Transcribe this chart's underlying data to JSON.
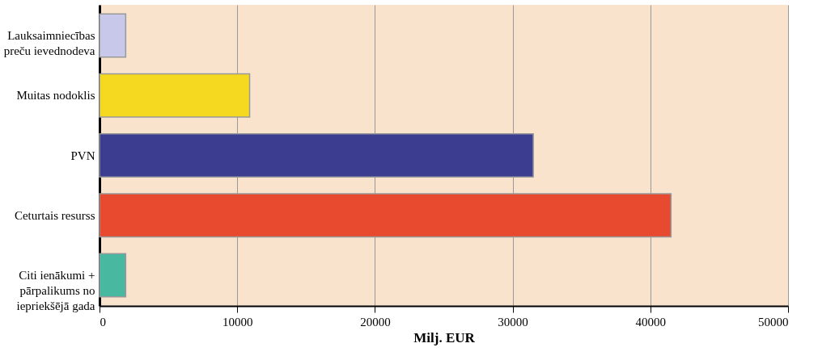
{
  "chart_data": {
    "type": "bar",
    "orientation": "horizontal",
    "categories": [
      "Lauksaimniecības preču ievednodeva",
      "Muitas nodoklis",
      "PVN",
      "Ceturtais resurss",
      "Citi ienākumi + pārpalikums no iepriekšējā gada"
    ],
    "values": [
      1900,
      10900,
      31500,
      41500,
      1900
    ],
    "colors": [
      "#c8c8ea",
      "#f5d820",
      "#3c3c90",
      "#e84a30",
      "#48b8a0"
    ],
    "xlabel": "Milj. EUR",
    "xlim": [
      0,
      50000
    ],
    "xticks": [
      0,
      10000,
      20000,
      30000,
      40000,
      50000
    ],
    "grid": "x"
  }
}
